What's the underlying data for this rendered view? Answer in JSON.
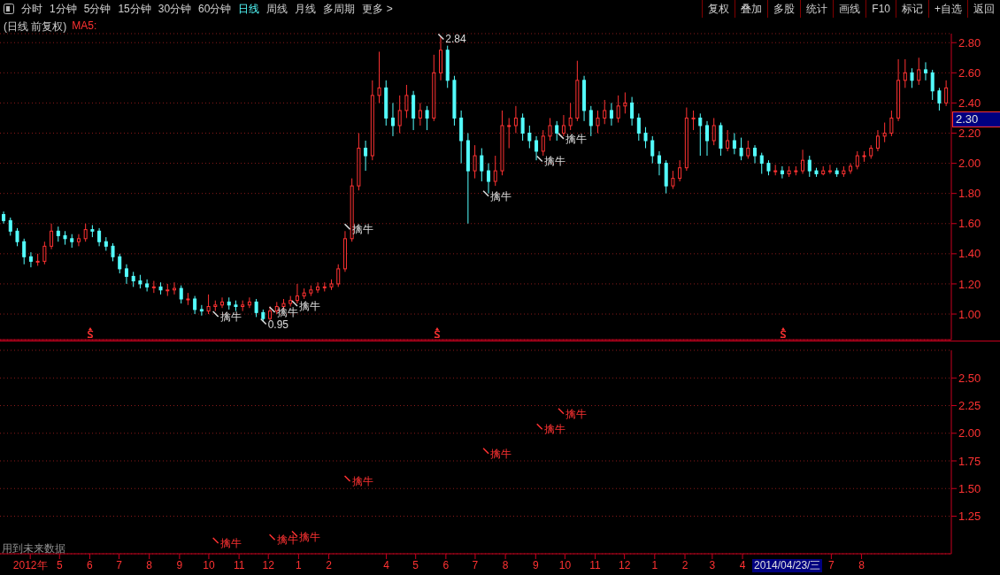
{
  "chart_data": [
    {
      "type": "candlestick",
      "title": "(日线 前复权)",
      "legend_title": "MA5:",
      "tick_labels": "y",
      "grid": "y",
      "legend": false,
      "colors": [
        "#54ffff",
        "#54ffff",
        "#54ffff",
        "#54ffff",
        "#54ffff",
        "#ff3232",
        "#ff3232",
        "#ff3232",
        "#54ffff",
        "#54ffff",
        "#54ffff",
        "#ff3232",
        "#ff3232",
        "#54ffff",
        "#54ffff",
        "#54ffff",
        "#54ffff",
        "#54ffff",
        "#54ffff",
        "#54ffff",
        "#54ffff",
        "#54ffff",
        "#ff3232",
        "#54ffff",
        "#ff3232",
        "#ff3232",
        "#54ffff",
        "#ff3232",
        "#54ffff",
        "#54ffff",
        "#ff3232",
        "#ff3232",
        "#ff3232",
        "#54ffff",
        "#54ffff",
        "#ff3232",
        "#ff3232",
        "#54ffff",
        "#54ffff",
        "#ff3232",
        "#ff3232",
        "#ff3232",
        "#ff3232",
        "#ff3232",
        "#ff3232",
        "#ff3232",
        "#ff3232",
        "#ff3232",
        "#ff3232",
        "#ff3232",
        "#ff3232",
        "#ff3232",
        "#ff3232",
        "#54ffff",
        "#ff3232",
        "#ff3232",
        "#54ffff",
        "#54ffff",
        "#ff3232",
        "#ff3232",
        "#54ffff",
        "#ff3232",
        "#54ffff",
        "#ff3232",
        "#ff3232",
        "#54ffff",
        "#54ffff",
        "#54ffff",
        "#54ffff",
        "#ff3232",
        "#54ffff",
        "#54ffff",
        "#ff3232",
        "#ff3232",
        "#ff3232",
        "#ff3232",
        "#54ffff",
        "#54ffff",
        "#54ffff",
        "#ff3232",
        "#ff3232",
        "#54ffff",
        "#ff3232",
        "#ff3232",
        "#ff3232",
        "#54ffff",
        "#54ffff",
        "#ff3232",
        "#ff3232",
        "#54ffff",
        "#ff3232",
        "#ff3232",
        "#54ffff",
        "#54ffff",
        "#54ffff",
        "#54ffff",
        "#54ffff",
        "#54ffff",
        "#ff3232",
        "#ff3232",
        "#ff3232",
        "#ff3232",
        "#54ffff",
        "#54ffff",
        "#ff3232",
        "#54ffff",
        "#ff3232",
        "#54ffff",
        "#54ffff",
        "#ff3232",
        "#54ffff",
        "#54ffff",
        "#54ffff",
        "#ff3232",
        "#54ffff",
        "#ff3232",
        "#ff3232",
        "#ff3232",
        "#54ffff",
        "#54ffff",
        "#ff3232",
        "#ff3232",
        "#54ffff",
        "#ff3232",
        "#ff3232",
        "#ff3232",
        "#ff3232",
        "#ff3232",
        "#ff3232",
        "#ff3232",
        "#ff3232",
        "#ff3232",
        "#ff3232",
        "#54ffff",
        "#ff3232",
        "#54ffff",
        "#54ffff",
        "#54ffff",
        "#ff3232"
      ],
      "xlim": [
        "2012-03-01",
        "2014-11-01"
      ],
      "ylim": [
        0.83,
        2.86
      ],
      "yticks": [
        {
          "value": 1.0,
          "label": "1.00"
        },
        {
          "value": 1.2,
          "label": "1.20"
        },
        {
          "value": 1.4,
          "label": "1.40"
        },
        {
          "value": 1.6,
          "label": "1.60"
        },
        {
          "value": 1.8,
          "label": "1.80"
        },
        {
          "value": 2.0,
          "label": "2.00"
        },
        {
          "value": 2.2,
          "label": "2.20"
        },
        {
          "value": 2.4,
          "label": "2.40"
        },
        {
          "value": 2.6,
          "label": "2.60"
        },
        {
          "value": 2.8,
          "label": "2.80"
        }
      ],
      "x": [
        "2012-03-05",
        "2012-03-12",
        "2012-03-19",
        "2012-03-26",
        "2012-04-02",
        "2012-04-09",
        "2012-04-16",
        "2012-04-23",
        "2012-04-30",
        "2012-05-07",
        "2012-05-14",
        "2012-05-21",
        "2012-05-28",
        "2012-06-04",
        "2012-06-11",
        "2012-06-18",
        "2012-06-25",
        "2012-07-02",
        "2012-07-09",
        "2012-07-16",
        "2012-07-23",
        "2012-07-30",
        "2012-08-06",
        "2012-08-13",
        "2012-08-20",
        "2012-08-27",
        "2012-09-03",
        "2012-09-10",
        "2012-09-17",
        "2012-09-24",
        "2012-10-01",
        "2012-10-08",
        "2012-10-15",
        "2012-10-22",
        "2012-10-29",
        "2012-11-05",
        "2012-11-12",
        "2012-11-19",
        "2012-11-26",
        "2012-12-03",
        "2012-12-10",
        "2012-12-17",
        "2012-12-24",
        "2012-12-31",
        "2013-01-07",
        "2013-01-14",
        "2013-01-21",
        "2013-01-28",
        "2013-02-04",
        "2013-02-11",
        "2013-02-18",
        "2013-02-25",
        "2013-03-04",
        "2013-03-11",
        "2013-03-18",
        "2013-03-25",
        "2013-04-01",
        "2013-04-08",
        "2013-04-15",
        "2013-04-22",
        "2013-04-29",
        "2013-05-06",
        "2013-05-13",
        "2013-05-20",
        "2013-05-27",
        "2013-06-03",
        "2013-06-10",
        "2013-06-17",
        "2013-06-24",
        "2013-07-01",
        "2013-07-08",
        "2013-07-15",
        "2013-07-22",
        "2013-07-29",
        "2013-08-05",
        "2013-08-12",
        "2013-08-19",
        "2013-08-26",
        "2013-09-02",
        "2013-09-09",
        "2013-09-16",
        "2013-09-23",
        "2013-09-30",
        "2013-10-07",
        "2013-10-14",
        "2013-10-21",
        "2013-10-28",
        "2013-11-04",
        "2013-11-11",
        "2013-11-18",
        "2013-11-25",
        "2013-12-02",
        "2013-12-09",
        "2013-12-16",
        "2013-12-23",
        "2013-12-30",
        "2014-01-06",
        "2014-01-13",
        "2014-01-20",
        "2014-01-27",
        "2014-02-03",
        "2014-02-10",
        "2014-02-17",
        "2014-02-24",
        "2014-03-03",
        "2014-03-10",
        "2014-03-17",
        "2014-03-24",
        "2014-03-31",
        "2014-04-07",
        "2014-04-14",
        "2014-04-21",
        "2014-04-28",
        "2014-05-05",
        "2014-05-12",
        "2014-05-19",
        "2014-05-26",
        "2014-06-02",
        "2014-06-09",
        "2014-06-16",
        "2014-06-23",
        "2014-06-30",
        "2014-07-07",
        "2014-07-14",
        "2014-07-21",
        "2014-07-28",
        "2014-08-04",
        "2014-08-11",
        "2014-08-18",
        "2014-08-25",
        "2014-09-01",
        "2014-09-08",
        "2014-09-15",
        "2014-09-22",
        "2014-09-29",
        "2014-10-06",
        "2014-10-13",
        "2014-10-20",
        "2014-10-27"
      ],
      "ohlc": [
        [
          1.66,
          1.68,
          1.6,
          1.62
        ],
        [
          1.62,
          1.64,
          1.52,
          1.55
        ],
        [
          1.55,
          1.57,
          1.45,
          1.48
        ],
        [
          1.48,
          1.5,
          1.33,
          1.38
        ],
        [
          1.38,
          1.41,
          1.31,
          1.35
        ],
        [
          1.35,
          1.4,
          1.32,
          1.35
        ],
        [
          1.35,
          1.48,
          1.33,
          1.45
        ],
        [
          1.45,
          1.6,
          1.43,
          1.55
        ],
        [
          1.55,
          1.58,
          1.48,
          1.52
        ],
        [
          1.52,
          1.55,
          1.46,
          1.5
        ],
        [
          1.5,
          1.53,
          1.44,
          1.48
        ],
        [
          1.48,
          1.53,
          1.45,
          1.5
        ],
        [
          1.5,
          1.6,
          1.48,
          1.56
        ],
        [
          1.56,
          1.59,
          1.51,
          1.55
        ],
        [
          1.55,
          1.57,
          1.45,
          1.48
        ],
        [
          1.48,
          1.51,
          1.42,
          1.45
        ],
        [
          1.45,
          1.47,
          1.35,
          1.38
        ],
        [
          1.38,
          1.4,
          1.27,
          1.3
        ],
        [
          1.3,
          1.33,
          1.2,
          1.25
        ],
        [
          1.25,
          1.28,
          1.18,
          1.22
        ],
        [
          1.22,
          1.26,
          1.17,
          1.2
        ],
        [
          1.2,
          1.23,
          1.15,
          1.18
        ],
        [
          1.18,
          1.22,
          1.14,
          1.18
        ],
        [
          1.18,
          1.21,
          1.13,
          1.16
        ],
        [
          1.16,
          1.2,
          1.12,
          1.16
        ],
        [
          1.16,
          1.21,
          1.13,
          1.17
        ],
        [
          1.17,
          1.19,
          1.07,
          1.1
        ],
        [
          1.1,
          1.14,
          1.06,
          1.1
        ],
        [
          1.1,
          1.12,
          1.0,
          1.03
        ],
        [
          1.03,
          1.06,
          0.99,
          1.02
        ],
        [
          1.02,
          1.13,
          1.0,
          1.05
        ],
        [
          1.05,
          1.09,
          1.02,
          1.06
        ],
        [
          1.06,
          1.11,
          1.04,
          1.08
        ],
        [
          1.08,
          1.11,
          1.03,
          1.06
        ],
        [
          1.06,
          1.09,
          1.02,
          1.05
        ],
        [
          1.05,
          1.09,
          1.02,
          1.06
        ],
        [
          1.06,
          1.11,
          1.04,
          1.08
        ],
        [
          1.08,
          1.1,
          0.98,
          1.01
        ],
        [
          1.01,
          1.03,
          0.95,
          0.97
        ],
        [
          0.97,
          1.05,
          0.96,
          1.02
        ],
        [
          1.02,
          1.08,
          1.0,
          1.05
        ],
        [
          1.05,
          1.1,
          1.03,
          1.07
        ],
        [
          1.07,
          1.12,
          1.05,
          1.09
        ],
        [
          1.09,
          1.2,
          1.07,
          1.12
        ],
        [
          1.12,
          1.17,
          1.1,
          1.14
        ],
        [
          1.14,
          1.19,
          1.12,
          1.16
        ],
        [
          1.16,
          1.21,
          1.14,
          1.18
        ],
        [
          1.18,
          1.21,
          1.15,
          1.18
        ],
        [
          1.18,
          1.23,
          1.16,
          1.2
        ],
        [
          1.2,
          1.33,
          1.18,
          1.3
        ],
        [
          1.3,
          1.55,
          1.28,
          1.5
        ],
        [
          1.5,
          1.9,
          1.48,
          1.85
        ],
        [
          1.85,
          2.2,
          1.82,
          2.1
        ],
        [
          2.1,
          2.15,
          1.95,
          2.05
        ],
        [
          2.05,
          2.55,
          2.02,
          2.45
        ],
        [
          2.45,
          2.74,
          2.4,
          2.5
        ],
        [
          2.5,
          2.55,
          2.25,
          2.3
        ],
        [
          2.3,
          2.4,
          2.18,
          2.25
        ],
        [
          2.25,
          2.45,
          2.2,
          2.35
        ],
        [
          2.35,
          2.52,
          2.3,
          2.45
        ],
        [
          2.45,
          2.48,
          2.22,
          2.3
        ],
        [
          2.3,
          2.4,
          2.25,
          2.35
        ],
        [
          2.35,
          2.38,
          2.22,
          2.3
        ],
        [
          2.3,
          2.72,
          2.28,
          2.6
        ],
        [
          2.6,
          2.84,
          2.55,
          2.75
        ],
        [
          2.75,
          2.78,
          2.5,
          2.55
        ],
        [
          2.55,
          2.58,
          2.25,
          2.3
        ],
        [
          2.3,
          2.35,
          2.0,
          2.15
        ],
        [
          2.15,
          2.2,
          1.6,
          1.95
        ],
        [
          1.95,
          2.12,
          1.9,
          2.05
        ],
        [
          2.05,
          2.1,
          1.88,
          1.95
        ],
        [
          1.95,
          2.0,
          1.8,
          1.88
        ],
        [
          1.88,
          2.05,
          1.85,
          1.95
        ],
        [
          1.95,
          2.35,
          1.92,
          2.25
        ],
        [
          2.25,
          2.3,
          2.1,
          2.25
        ],
        [
          2.25,
          2.38,
          2.2,
          2.3
        ],
        [
          2.3,
          2.33,
          2.15,
          2.2
        ],
        [
          2.2,
          2.25,
          2.1,
          2.15
        ],
        [
          2.15,
          2.18,
          2.02,
          2.08
        ],
        [
          2.08,
          2.22,
          2.05,
          2.18
        ],
        [
          2.18,
          2.3,
          2.15,
          2.25
        ],
        [
          2.25,
          2.28,
          2.15,
          2.2
        ],
        [
          2.2,
          2.32,
          2.18,
          2.25
        ],
        [
          2.25,
          2.4,
          2.22,
          2.3
        ],
        [
          2.3,
          2.68,
          2.28,
          2.55
        ],
        [
          2.55,
          2.58,
          2.28,
          2.35
        ],
        [
          2.35,
          2.38,
          2.18,
          2.25
        ],
        [
          2.25,
          2.35,
          2.2,
          2.3
        ],
        [
          2.3,
          2.42,
          2.26,
          2.35
        ],
        [
          2.35,
          2.4,
          2.25,
          2.3
        ],
        [
          2.3,
          2.45,
          2.27,
          2.38
        ],
        [
          2.38,
          2.47,
          2.33,
          2.4
        ],
        [
          2.4,
          2.44,
          2.25,
          2.3
        ],
        [
          2.3,
          2.33,
          2.15,
          2.2
        ],
        [
          2.2,
          2.24,
          2.1,
          2.15
        ],
        [
          2.15,
          2.18,
          2.0,
          2.05
        ],
        [
          2.05,
          2.08,
          1.92,
          2.0
        ],
        [
          2.0,
          2.02,
          1.8,
          1.85
        ],
        [
          1.85,
          1.95,
          1.83,
          1.9
        ],
        [
          1.9,
          2.02,
          1.88,
          1.97
        ],
        [
          1.97,
          2.37,
          1.95,
          2.3
        ],
        [
          2.3,
          2.35,
          2.22,
          2.3
        ],
        [
          2.3,
          2.33,
          2.05,
          2.25
        ],
        [
          2.25,
          2.28,
          2.05,
          2.15
        ],
        [
          2.15,
          2.3,
          2.12,
          2.25
        ],
        [
          2.25,
          2.27,
          2.05,
          2.1
        ],
        [
          2.1,
          2.22,
          2.08,
          2.15
        ],
        [
          2.15,
          2.2,
          2.06,
          2.1
        ],
        [
          2.1,
          2.17,
          2.02,
          2.05
        ],
        [
          2.05,
          2.15,
          2.03,
          2.1
        ],
        [
          2.1,
          2.12,
          2.0,
          2.05
        ],
        [
          2.05,
          2.07,
          1.93,
          2.0
        ],
        [
          2.0,
          2.02,
          1.92,
          1.95
        ],
        [
          1.95,
          1.99,
          1.92,
          1.95
        ],
        [
          1.95,
          1.98,
          1.9,
          1.93
        ],
        [
          1.93,
          1.98,
          1.91,
          1.95
        ],
        [
          1.95,
          1.98,
          1.92,
          1.95
        ],
        [
          1.95,
          2.09,
          1.93,
          2.02
        ],
        [
          2.02,
          2.05,
          1.91,
          1.95
        ],
        [
          1.95,
          1.97,
          1.91,
          1.93
        ],
        [
          1.93,
          1.98,
          1.92,
          1.95
        ],
        [
          1.95,
          1.99,
          1.93,
          1.95
        ],
        [
          1.95,
          1.97,
          1.91,
          1.93
        ],
        [
          1.93,
          1.98,
          1.91,
          1.95
        ],
        [
          1.95,
          2.0,
          1.93,
          1.98
        ],
        [
          1.98,
          2.08,
          1.96,
          2.05
        ],
        [
          2.05,
          2.08,
          2.01,
          2.05
        ],
        [
          2.05,
          2.12,
          2.03,
          2.1
        ],
        [
          2.1,
          2.22,
          2.08,
          2.18
        ],
        [
          2.18,
          2.27,
          2.14,
          2.2
        ],
        [
          2.2,
          2.35,
          2.18,
          2.3
        ],
        [
          2.3,
          2.69,
          2.28,
          2.55
        ],
        [
          2.55,
          2.69,
          2.5,
          2.6
        ],
        [
          2.6,
          2.63,
          2.5,
          2.55
        ],
        [
          2.55,
          2.7,
          2.52,
          2.62
        ],
        [
          2.62,
          2.67,
          2.55,
          2.6
        ],
        [
          2.6,
          2.62,
          2.42,
          2.48
        ],
        [
          2.48,
          2.5,
          2.35,
          2.4
        ],
        [
          2.4,
          2.55,
          2.38,
          2.5
        ]
      ],
      "annotations": [
        "分时",
        "1分钟",
        "5分钟",
        "15分钟",
        "30分钟",
        "60分钟",
        "日线",
        "周线",
        "月线",
        "多周期",
        "更多 >",
        "复权",
        "叠加",
        "多股",
        "统计",
        "画线",
        "F10",
        "标记",
        "+自选",
        "返回",
        {
          "text": "2.84",
          "x": "2013-05-27",
          "y": 2.84
        },
        {
          "text": "0.95",
          "x": "2012-11-26",
          "y": 0.95
        },
        {
          "text": "擒牛",
          "x": "2012-10-08",
          "y": 1.0
        },
        {
          "text": "擒牛",
          "x": "2012-12-05",
          "y": 1.03
        },
        {
          "text": "擒牛",
          "x": "2012-12-28",
          "y": 1.07
        },
        {
          "text": "擒牛",
          "x": "2013-02-20",
          "y": 1.58
        },
        {
          "text": "擒牛",
          "x": "2013-07-12",
          "y": 1.8
        },
        {
          "text": "擒牛",
          "x": "2013-09-05",
          "y": 2.03
        },
        {
          "text": "擒牛",
          "x": "2013-09-27",
          "y": 2.18
        },
        "2.30"
      ]
    },
    {
      "type": "scatter",
      "grid": "y",
      "legend": false,
      "color": "#ff3232",
      "xlim": [
        "2012-03-01",
        "2014-11-01"
      ],
      "ylim": [
        0.91,
        2.75
      ],
      "xticks": [
        {
          "value": "2012-04-01",
          "label": "2012年"
        },
        {
          "value": "2012-05-01",
          "label": "5"
        },
        {
          "value": "2012-06-01",
          "label": "6"
        },
        {
          "value": "2012-07-01",
          "label": "7"
        },
        {
          "value": "2012-08-01",
          "label": "8"
        },
        {
          "value": "2012-09-01",
          "label": "9"
        },
        {
          "value": "2012-10-01",
          "label": "10"
        },
        {
          "value": "2012-11-01",
          "label": "11"
        },
        {
          "value": "2012-12-01",
          "label": "12"
        },
        {
          "value": "2013-01-01",
          "label": "1"
        },
        {
          "value": "2013-02-01",
          "label": "2"
        },
        {
          "value": "2013-04-01",
          "label": "4"
        },
        {
          "value": "2013-05-01",
          "label": "5"
        },
        {
          "value": "2013-06-01",
          "label": "6"
        },
        {
          "value": "2013-07-01",
          "label": "7"
        },
        {
          "value": "2013-08-01",
          "label": "8"
        },
        {
          "value": "2013-09-01",
          "label": "9"
        },
        {
          "value": "2013-10-01",
          "label": "10"
        },
        {
          "value": "2013-11-01",
          "label": "11"
        },
        {
          "value": "2013-12-01",
          "label": "12"
        },
        {
          "value": "2014-01-01",
          "label": "1"
        },
        {
          "value": "2014-02-01",
          "label": "2"
        },
        {
          "value": "2014-03-01",
          "label": "3"
        },
        {
          "value": "2014-04-01",
          "label": "4"
        },
        {
          "value": "2014-07-01",
          "label": "7"
        },
        {
          "value": "2014-08-01",
          "label": "8"
        }
      ],
      "yticks": [
        1.25,
        {
          "value": 1.5,
          "label": "1.50"
        },
        1.75,
        {
          "value": 2.0,
          "label": "2.00"
        },
        2.25,
        {
          "value": 2.5,
          "label": "2.50"
        }
      ],
      "x": [
        "2012-10-08",
        "2012-12-05",
        "2012-12-28",
        "2013-02-20",
        "2013-07-12",
        "2013-09-05",
        "2013-09-27"
      ],
      "values": [
        1.03,
        1.06,
        1.09,
        1.59,
        1.84,
        2.06,
        2.2
      ],
      "value_labels": [
        "擒牛",
        "擒牛",
        "擒牛",
        "擒牛",
        "擒牛",
        "擒牛",
        "擒牛"
      ],
      "annotations": [
        "用到未来数据",
        "2014/04/23/三"
      ]
    }
  ]
}
